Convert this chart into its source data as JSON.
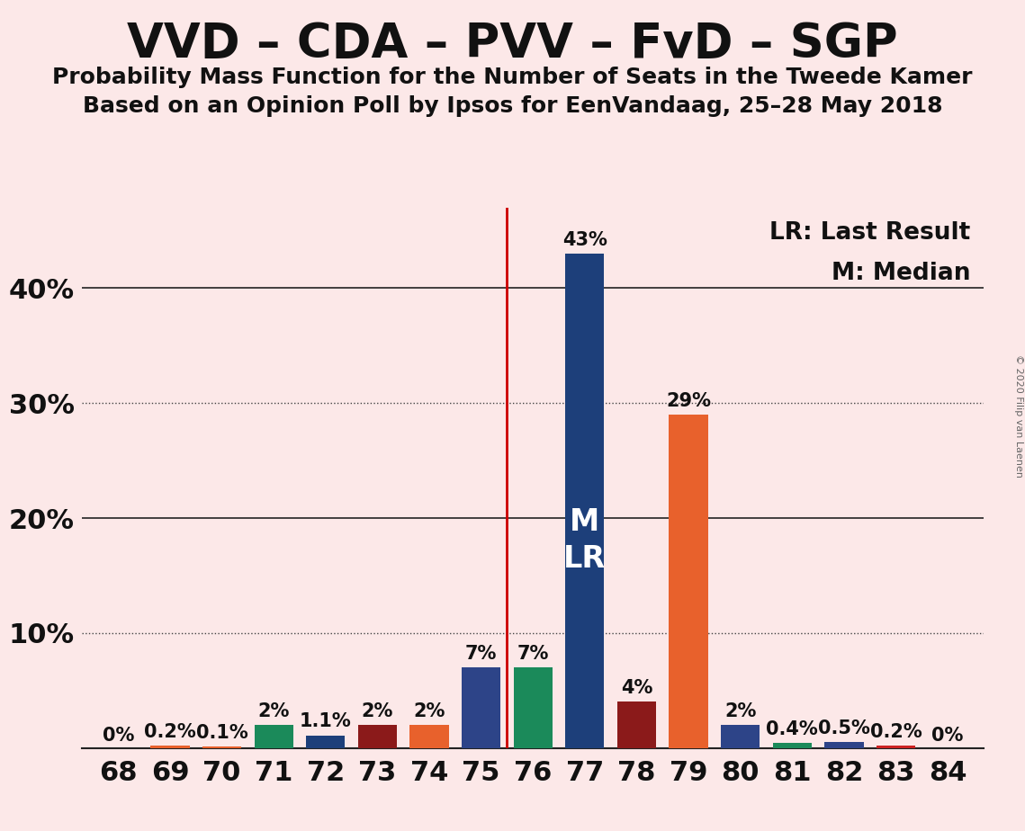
{
  "title": "VVD – CDA – PVV – FvD – SGP",
  "subtitle1": "Probability Mass Function for the Number of Seats in the Tweede Kamer",
  "subtitle2": "Based on an Opinion Poll by Ipsos for EenVandaag, 25–28 May 2018",
  "copyright": "© 2020 Filip van Laenen",
  "background_color": "#fce8e8",
  "seats": [
    68,
    69,
    70,
    71,
    72,
    73,
    74,
    75,
    76,
    77,
    78,
    79,
    80,
    81,
    82,
    83,
    84
  ],
  "values": [
    0.0,
    0.2,
    0.1,
    2.0,
    1.1,
    2.0,
    2.0,
    7.0,
    7.0,
    43.0,
    4.0,
    29.0,
    2.0,
    0.4,
    0.5,
    0.2,
    0.0
  ],
  "colors": [
    "#e8612c",
    "#e8612c",
    "#e8612c",
    "#1b8a5a",
    "#1d3f7a",
    "#8b1a1a",
    "#e8612c",
    "#2d4488",
    "#1b8a5a",
    "#1d3f7a",
    "#8b1a1a",
    "#e8612c",
    "#2d4488",
    "#1b8a5a",
    "#2d4488",
    "#cc2222",
    "#e8612c"
  ],
  "labels": [
    "0%",
    "0.2%",
    "0.1%",
    "2%",
    "1.1%",
    "2%",
    "2%",
    "7%",
    "7%",
    "43%",
    "4%",
    "29%",
    "2%",
    "0.4%",
    "0.5%",
    "0.2%",
    "0%"
  ],
  "median_seat": 77,
  "vline_seat": 75.5,
  "ylim": [
    0,
    47
  ],
  "yticks": [
    0,
    10,
    20,
    30,
    40
  ],
  "ytick_labels": [
    "",
    "10%",
    "20%",
    "30%",
    "40%"
  ],
  "legend_text1": "LR: Last Result",
  "legend_text2": "M: Median",
  "bar_width": 0.75,
  "title_fontsize": 38,
  "subtitle_fontsize": 18,
  "label_fontsize": 15,
  "tick_fontsize": 22,
  "legend_fontsize": 19,
  "mlr_fontsize": 24,
  "solid_gridlines": [
    0,
    20,
    40
  ],
  "dotted_gridlines": [
    10,
    30
  ]
}
